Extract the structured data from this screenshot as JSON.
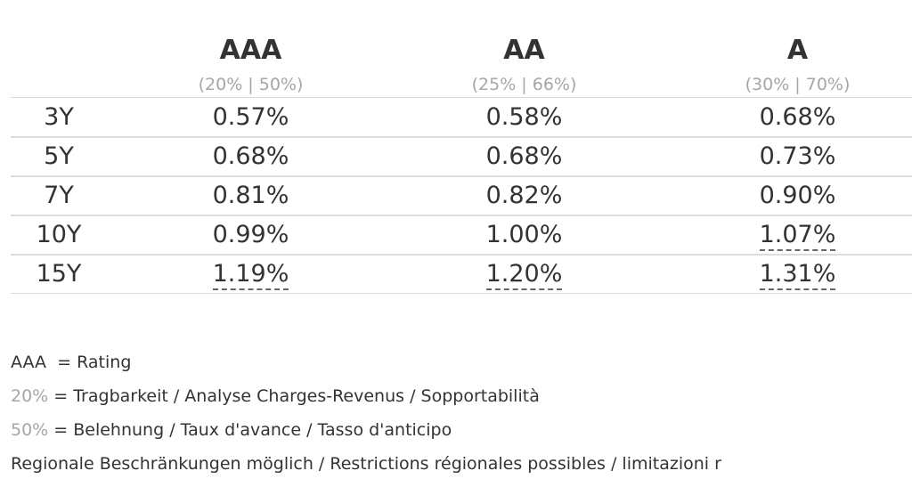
{
  "table": {
    "columns": [
      {
        "rating": "AAA",
        "sub": "(20% | 50%)"
      },
      {
        "rating": "AA",
        "sub": "(25% | 66%)"
      },
      {
        "rating": "A",
        "sub": "(30% | 70%)"
      }
    ],
    "rows": [
      {
        "term": "3Y",
        "values": [
          "0.57%",
          "0.58%",
          "0.68%"
        ]
      },
      {
        "term": "5Y",
        "values": [
          "0.68%",
          "0.68%",
          "0.73%"
        ]
      },
      {
        "term": "7Y",
        "values": [
          "0.81%",
          "0.82%",
          "0.90%"
        ]
      },
      {
        "term": "10Y",
        "values": [
          "0.99%",
          "1.00%",
          "1.07%"
        ]
      },
      {
        "term": "15Y",
        "values": [
          "1.19%",
          "1.20%",
          "1.31%"
        ]
      }
    ]
  },
  "legend": {
    "rating_key": "AAA",
    "rating_text": "= Rating",
    "afford_key": "20%",
    "afford_text": "= Tragbarkeit / Analyse Charges-Revenus / Sopportabilità",
    "ltv_key": "50%",
    "ltv_text": "= Belehnung / Taux d'avance / Tasso d'anticipo",
    "note": "Regionale Beschränkungen möglich / Restrictions régionales possibles / limitazioni r"
  },
  "colors": {
    "text": "#333333",
    "muted": "#a6a6a6",
    "divider": "#dcdcdc"
  }
}
